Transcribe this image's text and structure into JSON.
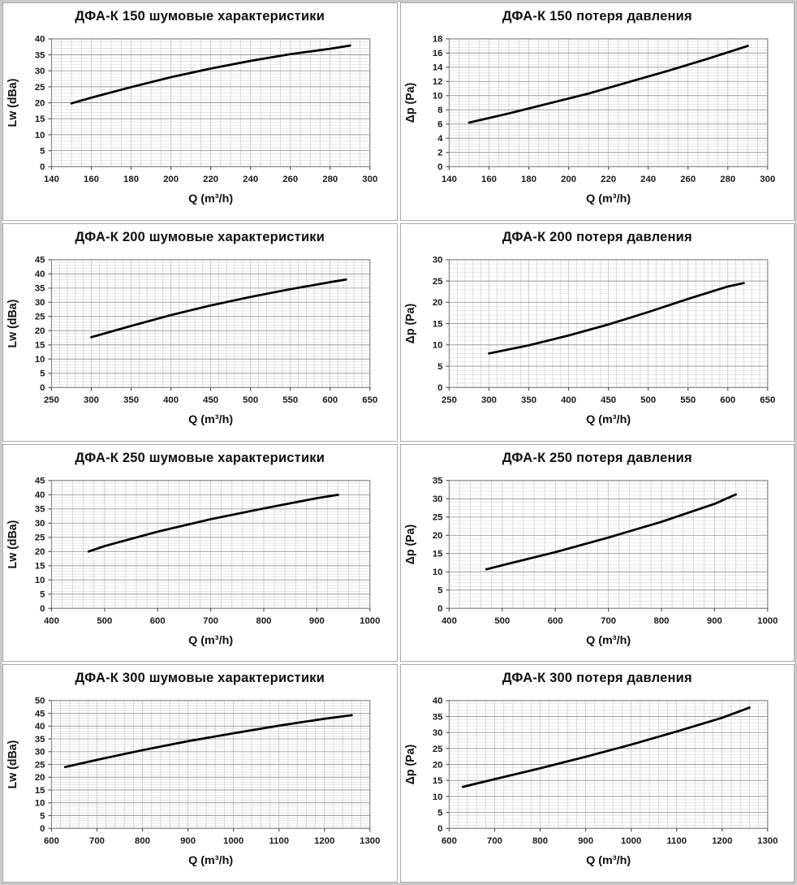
{
  "page": {
    "background_color": "#e9e9e9",
    "panel_border_color": "#aaaaaa",
    "line_color": "#000000",
    "grid_major_color": "#9c9c9c",
    "grid_minor_color": "#dedede",
    "grid_vertical_color": "#cccccc"
  },
  "chart_data": [
    {
      "id": "dfa-k-150-noise",
      "type": "line",
      "title": "ДФА-К 150 шумовые характеристики",
      "xlabel": "Q (m³/h)",
      "ylabel": "Lw (dBa)",
      "xlim": [
        140,
        300
      ],
      "xstep": 20,
      "x_minor": 5,
      "ylim": [
        0,
        40
      ],
      "ystep": 5,
      "y_minor": 1,
      "grid": "major+minor",
      "legend": "none",
      "xticks": [
        "140",
        "160",
        "180",
        "200",
        "220",
        "240",
        "260",
        "280",
        "300"
      ],
      "yticks": [
        "0",
        "5",
        "10",
        "15",
        "20",
        "25",
        "30",
        "35",
        "40"
      ],
      "points": [
        [
          150,
          19.8
        ],
        [
          160,
          21.6
        ],
        [
          180,
          24.9
        ],
        [
          200,
          28.0
        ],
        [
          220,
          30.7
        ],
        [
          240,
          33.1
        ],
        [
          260,
          35.2
        ],
        [
          280,
          36.9
        ],
        [
          290,
          37.9
        ]
      ]
    },
    {
      "id": "dfa-k-150-pressure",
      "type": "line",
      "title": "ДФА-К 150 потеря давления",
      "xlabel": "Q (m³/h)",
      "ylabel": "Δp (Pa)",
      "xlim": [
        140,
        300
      ],
      "xstep": 20,
      "x_minor": 5,
      "ylim": [
        0,
        18
      ],
      "ystep": 2,
      "y_minor": 0.4,
      "grid": "major+minor",
      "legend": "none",
      "xticks": [
        "140",
        "160",
        "180",
        "200",
        "220",
        "240",
        "260",
        "280",
        "300"
      ],
      "yticks": [
        "0",
        "2",
        "4",
        "6",
        "8",
        "10",
        "12",
        "14",
        "16",
        "18"
      ],
      "points": [
        [
          150,
          6.2
        ],
        [
          170,
          7.5
        ],
        [
          190,
          8.9
        ],
        [
          210,
          10.3
        ],
        [
          230,
          11.9
        ],
        [
          250,
          13.5
        ],
        [
          270,
          15.2
        ],
        [
          290,
          17.0
        ]
      ]
    },
    {
      "id": "dfa-k-200-noise",
      "type": "line",
      "title": "ДФА-К 200 шумовые характеристики",
      "xlabel": "Q (m³/h)",
      "ylabel": "Lw (dBa)",
      "xlim": [
        250,
        650
      ],
      "xstep": 50,
      "x_minor": 10,
      "ylim": [
        0,
        45
      ],
      "ystep": 5,
      "y_minor": 1,
      "grid": "major+minor",
      "legend": "none",
      "xticks": [
        "250",
        "300",
        "350",
        "400",
        "450",
        "500",
        "550",
        "600",
        "650"
      ],
      "yticks": [
        "0",
        "5",
        "10",
        "15",
        "20",
        "25",
        "30",
        "35",
        "40",
        "45"
      ],
      "points": [
        [
          300,
          17.7
        ],
        [
          350,
          21.7
        ],
        [
          400,
          25.5
        ],
        [
          450,
          28.9
        ],
        [
          500,
          31.9
        ],
        [
          550,
          34.6
        ],
        [
          600,
          37.1
        ],
        [
          620,
          38.0
        ]
      ]
    },
    {
      "id": "dfa-k-200-pressure",
      "type": "line",
      "title": "ДФА-К 200 потеря давления",
      "xlabel": "Q (m³/h)",
      "ylabel": "Δp (Pa)",
      "xlim": [
        250,
        650
      ],
      "xstep": 50,
      "x_minor": 10,
      "ylim": [
        0,
        30
      ],
      "ystep": 5,
      "y_minor": 1,
      "grid": "major+minor",
      "legend": "none",
      "xticks": [
        "250",
        "300",
        "350",
        "400",
        "450",
        "500",
        "550",
        "600",
        "650"
      ],
      "yticks": [
        "0",
        "5",
        "10",
        "15",
        "20",
        "25",
        "30"
      ],
      "points": [
        [
          300,
          8.0
        ],
        [
          350,
          9.9
        ],
        [
          400,
          12.2
        ],
        [
          450,
          14.8
        ],
        [
          500,
          17.7
        ],
        [
          550,
          20.8
        ],
        [
          600,
          23.7
        ],
        [
          620,
          24.5
        ]
      ]
    },
    {
      "id": "dfa-k-250-noise",
      "type": "line",
      "title": "ДФА-К 250 шумовые характеристики",
      "xlabel": "Q (m³/h)",
      "ylabel": "Lw (dBa)",
      "xlim": [
        400,
        1000
      ],
      "xstep": 100,
      "x_minor": 20,
      "ylim": [
        0,
        45
      ],
      "ystep": 5,
      "y_minor": 1,
      "grid": "major+minor",
      "legend": "none",
      "xticks": [
        "400",
        "500",
        "600",
        "700",
        "800",
        "900",
        "1000"
      ],
      "yticks": [
        "0",
        "5",
        "10",
        "15",
        "20",
        "25",
        "30",
        "35",
        "40",
        "45"
      ],
      "points": [
        [
          470,
          20.0
        ],
        [
          500,
          21.9
        ],
        [
          600,
          27.0
        ],
        [
          700,
          31.4
        ],
        [
          800,
          35.2
        ],
        [
          900,
          38.8
        ],
        [
          940,
          40.0
        ]
      ]
    },
    {
      "id": "dfa-k-250-pressure",
      "type": "line",
      "title": "ДФА-К 250 потеря давления",
      "xlabel": "Q (m³/h)",
      "ylabel": "Δp (Pa)",
      "xlim": [
        400,
        1000
      ],
      "xstep": 100,
      "x_minor": 20,
      "ylim": [
        0,
        35
      ],
      "ystep": 5,
      "y_minor": 1,
      "grid": "major+minor",
      "legend": "none",
      "xticks": [
        "400",
        "500",
        "600",
        "700",
        "800",
        "900",
        "1000"
      ],
      "yticks": [
        "0",
        "5",
        "10",
        "15",
        "20",
        "25",
        "30",
        "35"
      ],
      "points": [
        [
          470,
          10.7
        ],
        [
          500,
          11.8
        ],
        [
          600,
          15.4
        ],
        [
          700,
          19.4
        ],
        [
          800,
          23.7
        ],
        [
          900,
          28.6
        ],
        [
          940,
          31.2
        ]
      ]
    },
    {
      "id": "dfa-k-300-noise",
      "type": "line",
      "title": "ДФА-К 300 шумовые характеристики",
      "xlabel": "Q (m³/h)",
      "ylabel": "Lw (dBa)",
      "xlim": [
        600,
        1300
      ],
      "xstep": 100,
      "x_minor": 20,
      "ylim": [
        0,
        50
      ],
      "ystep": 5,
      "y_minor": 1,
      "grid": "major+minor",
      "legend": "none",
      "xticks": [
        "600",
        "700",
        "800",
        "900",
        "1000",
        "1100",
        "1200",
        "1300"
      ],
      "yticks": [
        "0",
        "5",
        "10",
        "15",
        "20",
        "25",
        "30",
        "35",
        "40",
        "45",
        "50"
      ],
      "points": [
        [
          630,
          24.0
        ],
        [
          700,
          26.8
        ],
        [
          800,
          30.6
        ],
        [
          900,
          34.1
        ],
        [
          1000,
          37.2
        ],
        [
          1100,
          40.2
        ],
        [
          1200,
          42.9
        ],
        [
          1260,
          44.3
        ]
      ]
    },
    {
      "id": "dfa-k-300-pressure",
      "type": "line",
      "title": "ДФА-К 300 потеря давления",
      "xlabel": "Q (m³/h)",
      "ylabel": "Δp (Pa)",
      "xlim": [
        600,
        1300
      ],
      "xstep": 100,
      "x_minor": 20,
      "ylim": [
        0,
        40
      ],
      "ystep": 5,
      "y_minor": 1,
      "grid": "major+minor",
      "legend": "none",
      "xticks": [
        "600",
        "700",
        "800",
        "900",
        "1000",
        "1100",
        "1200",
        "1300"
      ],
      "yticks": [
        "0",
        "5",
        "10",
        "15",
        "20",
        "25",
        "30",
        "35",
        "40"
      ],
      "points": [
        [
          630,
          13.0
        ],
        [
          700,
          15.4
        ],
        [
          800,
          18.8
        ],
        [
          900,
          22.4
        ],
        [
          1000,
          26.2
        ],
        [
          1100,
          30.3
        ],
        [
          1200,
          34.6
        ],
        [
          1260,
          37.8
        ]
      ]
    }
  ]
}
